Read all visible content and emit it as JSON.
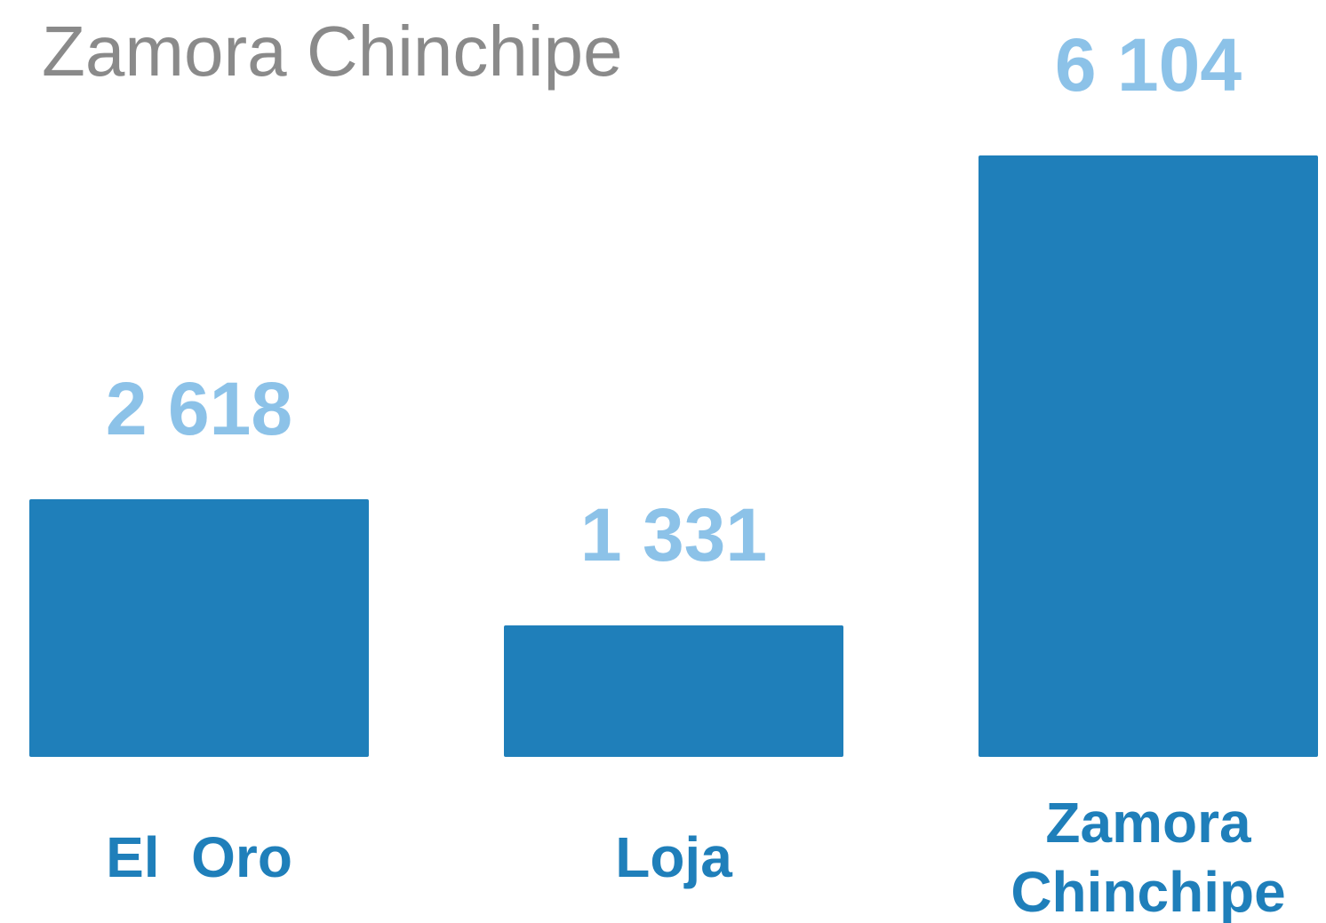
{
  "chart_data": {
    "type": "bar",
    "title": "Zamora Chinchipe",
    "categories": [
      "El  Oro",
      "Loja",
      "Zamora Chinchipe"
    ],
    "values": [
      2618,
      1331,
      6104
    ],
    "value_labels": [
      "2 618",
      "1 331",
      "6 104"
    ],
    "color": "#1f7fba"
  }
}
